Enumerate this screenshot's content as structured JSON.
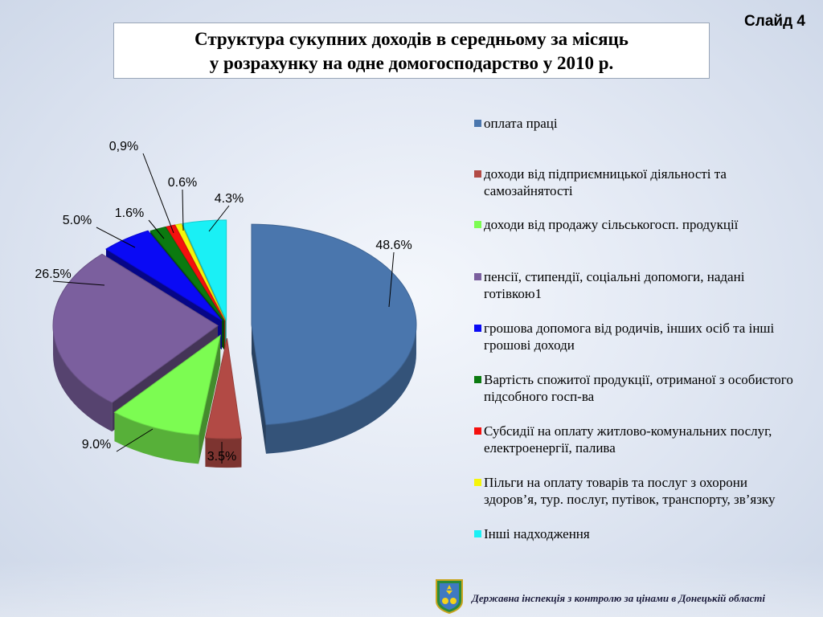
{
  "slide_label": "Слайд 4",
  "title_line1": "Структура сукупних доходів в середньому за місяць",
  "title_line2": "у розрахунку на одне домогосподарство у 2010 р.",
  "footer_text": "Державна інспекція з контролю за цінами в Донецькій області",
  "chart_data": {
    "type": "pie",
    "title": "",
    "style": "3d-exploded",
    "legend_position": "right",
    "slices": [
      {
        "label": "оплата праці",
        "value": 48.6,
        "display": "48.6%",
        "color": "#4a76ad"
      },
      {
        "label": "доходи від підприємницької діяльності та самозайнятості",
        "value": 3.5,
        "display": "3.5%",
        "color": "#b24a45"
      },
      {
        "label": "доходи від продажу сільськогосп. продукції",
        "value": 9.0,
        "display": "9.0%",
        "color": "#7cfc52"
      },
      {
        "label": "пенсії, стипендії, соціальні допомоги, надані готівкою1",
        "value": 26.5,
        "display": "26.5%",
        "color": "#7b5f9e"
      },
      {
        "label": "грошова допомога від родичів, інших осіб та інші грошові доходи",
        "value": 5.0,
        "display": "5.0%",
        "color": "#0a0af5"
      },
      {
        "label": "Вартість спожитої продукції, отриманої з особистого підсобного госп-ва",
        "value": 1.6,
        "display": "1.6%",
        "color": "#0b7a10"
      },
      {
        "label": "Субсидії на оплату житлово-комунальних послуг, електроенергії, палива",
        "value": 0.9,
        "display": "0,9%",
        "color": "#f5100e"
      },
      {
        "label": "Пільги на оплату товарів та послуг з охорони здоров’я, тур. послуг, путівок, транспорту, зв’язку",
        "value": 0.6,
        "display": "0.6%",
        "color": "#f5f50a"
      },
      {
        "label": "Інші надходження",
        "value": 4.3,
        "display": "4.3%",
        "color": "#1af0f5"
      }
    ]
  }
}
